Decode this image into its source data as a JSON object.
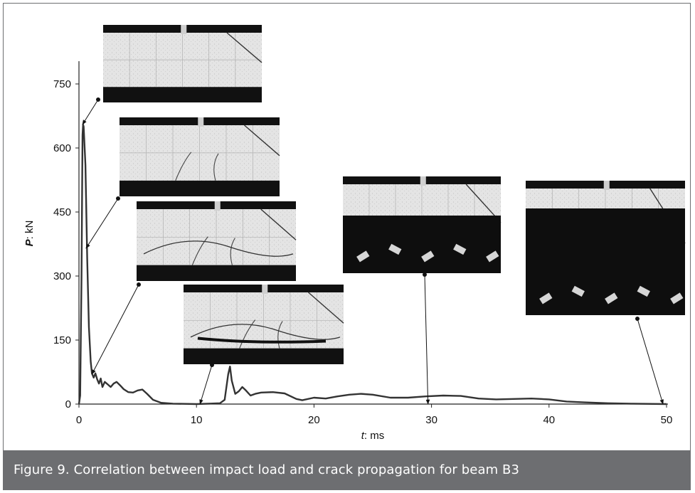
{
  "figure": {
    "caption": "Figure 9. Correlation between impact load and crack propagation for beam B3"
  },
  "colors": {
    "frame": "#6d6e71",
    "caption_bg": "#6d6e71",
    "caption_text": "#ffffff",
    "line": "#333333"
  },
  "chart_data": {
    "type": "line",
    "title": "",
    "xlabel": {
      "var": "t",
      "unit": ": ms"
    },
    "ylabel": {
      "var": "P",
      "unit": ": kN"
    },
    "xlim": [
      0,
      50
    ],
    "ylim": [
      0,
      800
    ],
    "x_ticks": [
      0,
      10,
      20,
      30,
      40,
      50
    ],
    "y_ticks": [
      0,
      150,
      300,
      450,
      600,
      750
    ],
    "grid": false,
    "series": [
      {
        "values": [
          [
            0,
            0
          ],
          [
            0.1,
            20
          ],
          [
            0.22,
            300
          ],
          [
            0.3,
            630
          ],
          [
            0.35,
            655
          ],
          [
            0.4,
            650
          ],
          [
            0.55,
            560
          ],
          [
            0.7,
            340
          ],
          [
            0.85,
            180
          ],
          [
            1.0,
            100
          ],
          [
            1.1,
            72
          ],
          [
            1.25,
            62
          ],
          [
            1.4,
            72
          ],
          [
            1.55,
            58
          ],
          [
            1.7,
            48
          ],
          [
            1.85,
            60
          ],
          [
            2.0,
            40
          ],
          [
            2.2,
            52
          ],
          [
            2.45,
            46
          ],
          [
            2.7,
            40
          ],
          [
            2.95,
            48
          ],
          [
            3.2,
            52
          ],
          [
            3.5,
            44
          ],
          [
            3.8,
            35
          ],
          [
            4.2,
            28
          ],
          [
            4.6,
            27
          ],
          [
            5.0,
            32
          ],
          [
            5.4,
            34
          ],
          [
            5.8,
            24
          ],
          [
            6.3,
            10
          ],
          [
            7.0,
            3
          ],
          [
            8.0,
            1
          ],
          [
            10.0,
            0
          ],
          [
            11.0,
            1
          ],
          [
            12.0,
            2
          ],
          [
            12.4,
            10
          ],
          [
            12.7,
            70
          ],
          [
            12.85,
            88
          ],
          [
            13.0,
            55
          ],
          [
            13.3,
            24
          ],
          [
            13.6,
            30
          ],
          [
            13.9,
            40
          ],
          [
            14.2,
            32
          ],
          [
            14.6,
            20
          ],
          [
            15.0,
            24
          ],
          [
            15.5,
            27
          ],
          [
            16.5,
            28
          ],
          [
            17.5,
            25
          ],
          [
            18.5,
            12
          ],
          [
            19.0,
            9
          ],
          [
            20.0,
            15
          ],
          [
            21.0,
            13
          ],
          [
            22.0,
            18
          ],
          [
            23.0,
            22
          ],
          [
            24.0,
            24
          ],
          [
            25.0,
            22
          ],
          [
            26.5,
            15
          ],
          [
            28.0,
            15
          ],
          [
            29.5,
            18
          ],
          [
            31.0,
            20
          ],
          [
            32.5,
            19
          ],
          [
            34.0,
            13
          ],
          [
            35.5,
            11
          ],
          [
            37.0,
            12
          ],
          [
            38.5,
            13
          ],
          [
            40.0,
            11
          ],
          [
            41.5,
            6
          ],
          [
            43.0,
            4
          ],
          [
            45.0,
            2
          ],
          [
            47.0,
            1
          ],
          [
            50.0,
            0
          ]
        ]
      }
    ],
    "photo_annotations": [
      {
        "label": "crack-photo-1",
        "target": [
          0.3,
          655
        ],
        "stage": "no cracks"
      },
      {
        "label": "crack-photo-2",
        "target": [
          0.6,
          365
        ],
        "stage": "initial flexural cracks"
      },
      {
        "label": "crack-photo-3",
        "target": [
          1.1,
          70
        ],
        "stage": "flexural-shear cracks"
      },
      {
        "label": "crack-photo-4",
        "target": [
          10.3,
          0
        ],
        "stage": "diagonal shear crack"
      },
      {
        "label": "crack-photo-5",
        "target": [
          29.7,
          0
        ],
        "stage": "concrete spalling"
      },
      {
        "label": "crack-photo-6",
        "target": [
          49.7,
          0
        ],
        "stage": "beam failure"
      }
    ]
  }
}
